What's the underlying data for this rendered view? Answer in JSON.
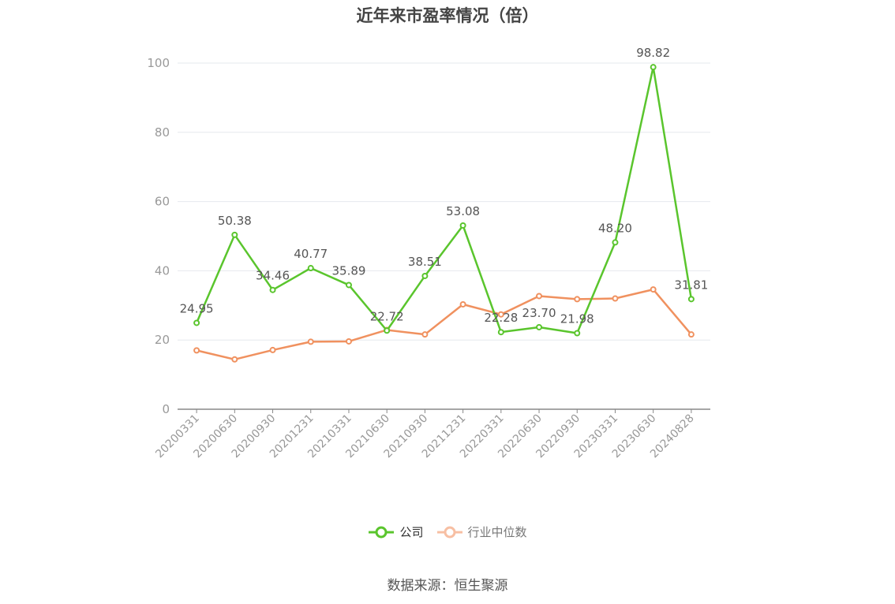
{
  "chart_data": {
    "type": "line",
    "title": "近年来市盈率情况（倍）",
    "categories": [
      "20200331",
      "20200630",
      "20200930",
      "20201231",
      "20210331",
      "20210630",
      "20210930",
      "20211231",
      "20220331",
      "20220630",
      "20220930",
      "20230331",
      "20230630",
      "20240828"
    ],
    "series": [
      {
        "name": "公司",
        "color": "#5ac52d",
        "values": [
          24.95,
          50.38,
          34.46,
          40.77,
          35.89,
          22.72,
          38.51,
          53.08,
          22.28,
          23.7,
          21.98,
          48.2,
          98.82,
          31.81
        ],
        "labels": [
          "24.95",
          "50.38",
          "34.46",
          "40.77",
          "35.89",
          "22.72",
          "38.51",
          "53.08",
          "22.28",
          "23.70",
          "21.98",
          "48.20",
          "98.82",
          "31.81"
        ]
      },
      {
        "name": "行业中位数",
        "color": "#f0915f",
        "values": [
          17.0,
          14.4,
          17.1,
          19.5,
          19.6,
          22.9,
          21.6,
          30.3,
          27.4,
          32.7,
          31.8,
          32.0,
          34.6,
          21.6
        ]
      }
    ],
    "ylim": [
      0,
      100
    ],
    "yticks": [
      "0",
      "20",
      "40",
      "60",
      "80",
      "100"
    ],
    "grid": true,
    "legend_position": "bottom"
  },
  "source": "数据来源：恒生聚源"
}
